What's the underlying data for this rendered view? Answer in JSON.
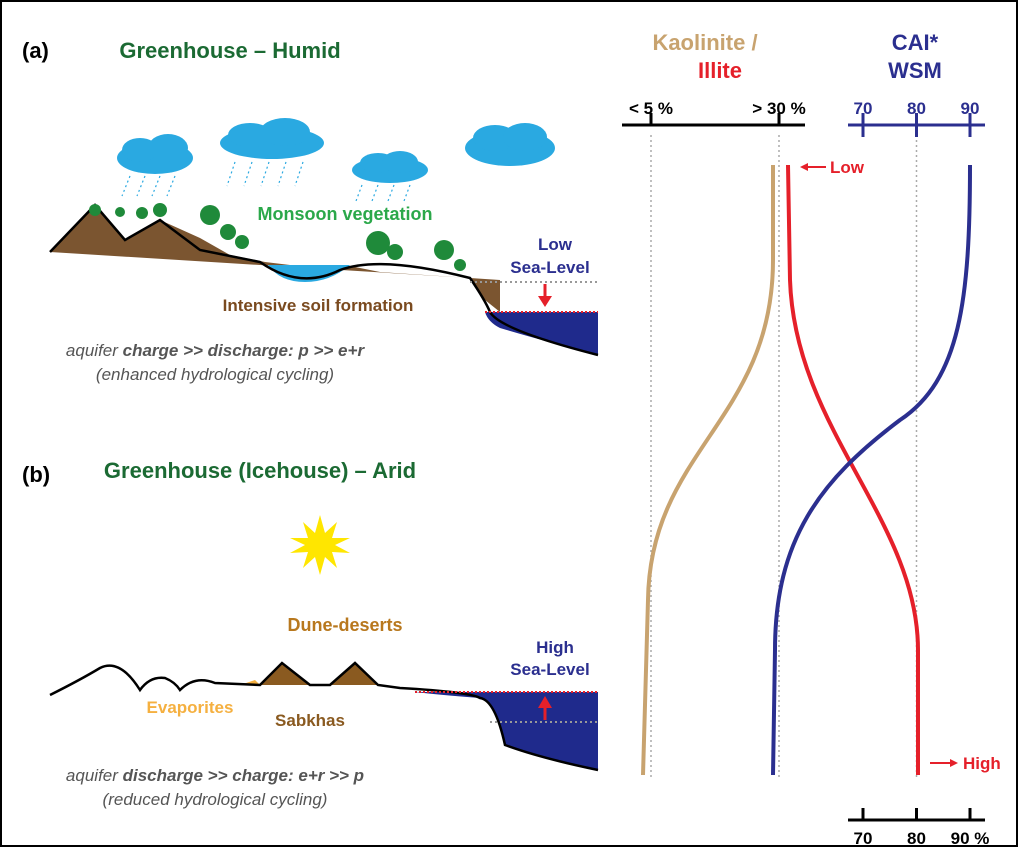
{
  "panels": [
    {
      "label": "(a)",
      "title": "Greenhouse – Humid",
      "annotations": {
        "vegetation": "Monsoon vegetation",
        "soil": "Intensive soil formation"
      },
      "sea_level": [
        "Low",
        "Sea-Level"
      ],
      "caption": [
        [
          {
            "text": "aquifer ",
            "bold": false
          },
          {
            "text": "charge >> discharge: p >> e+r",
            "bold": true
          }
        ],
        [
          {
            "text": "(enhanced hydrological cycling)",
            "bold": false
          }
        ]
      ]
    },
    {
      "label": "(b)",
      "title": "Greenhouse (Icehouse) – Arid",
      "annotations": {
        "dunes": "Dune-deserts",
        "evaporites": "Evaporites",
        "sabkhas": "Sabkhas"
      },
      "sea_level": [
        "High",
        "Sea-Level"
      ],
      "caption": [
        [
          {
            "text": "aquifer ",
            "bold": false
          },
          {
            "text": "discharge >> charge: e+r >> p",
            "bold": true
          }
        ],
        [
          {
            "text": "(reduced hydrological cycling)",
            "bold": false
          }
        ]
      ]
    }
  ],
  "proxies": {
    "kaolinite_illite": {
      "title": [
        "Kaolinite /",
        "Illite"
      ],
      "ticks": [
        {
          "value": 5,
          "label": "< 5 %"
        },
        {
          "value": 30,
          "label": "> 30 %"
        }
      ]
    },
    "cai_wsm": {
      "title": [
        "CAI*",
        "WSM"
      ],
      "top_ticks": [
        70,
        80,
        90
      ],
      "bottom_ticks": [
        70,
        80,
        {
          "value": 90,
          "label": "90 %"
        }
      ]
    },
    "trend_labels": {
      "top": "Low",
      "bottom": "High"
    }
  }
}
